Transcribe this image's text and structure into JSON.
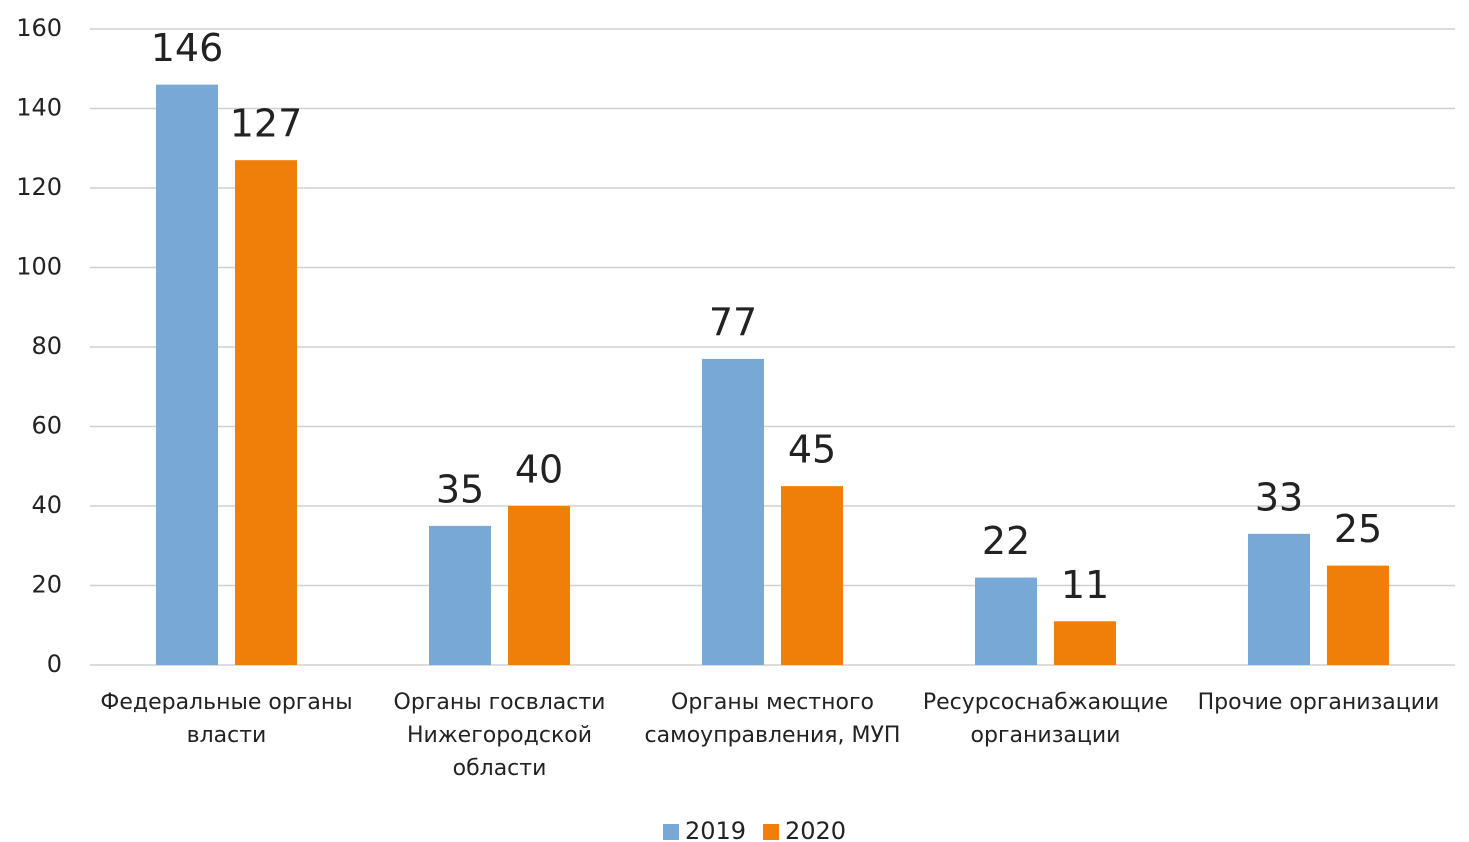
{
  "chart_data": {
    "type": "bar",
    "categories": [
      "Федеральные органы власти",
      "Органы госвласти Нижегородской области",
      "Органы местного самоуправления, МУП",
      "Ресурсоснабжающие организации",
      "Прочие организации"
    ],
    "series": [
      {
        "name": "2019",
        "color": "#77a8d6",
        "values": [
          146,
          35,
          77,
          22,
          33
        ]
      },
      {
        "name": "2020",
        "color": "#f07f09",
        "values": [
          127,
          40,
          45,
          11,
          25
        ]
      }
    ],
    "ylim": [
      0,
      160
    ],
    "yticks": [
      0,
      20,
      40,
      60,
      80,
      100,
      120,
      140,
      160
    ],
    "grid": true,
    "legend": "bottom"
  }
}
